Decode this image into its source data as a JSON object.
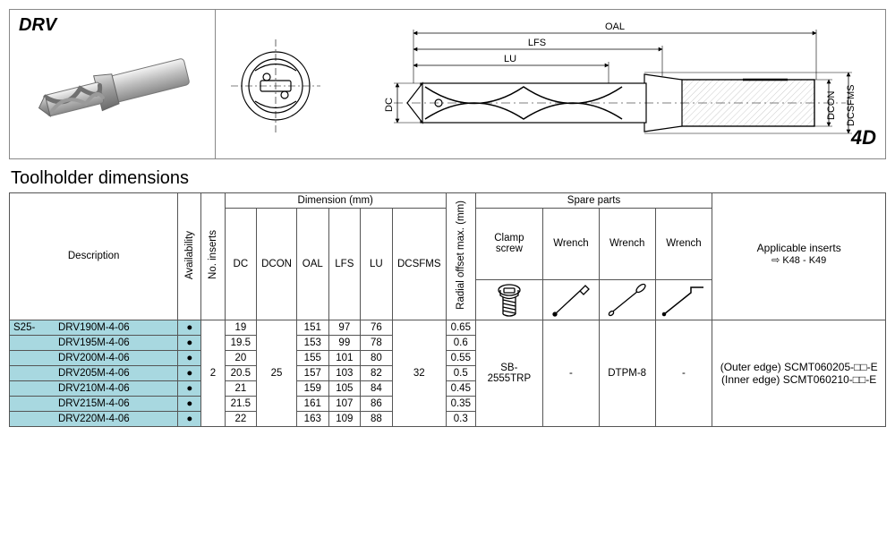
{
  "product": {
    "code": "DRV",
    "ratio": "4D"
  },
  "diagram_labels": {
    "oal": "OAL",
    "lfs": "LFS",
    "lu": "LU",
    "dc": "DC",
    "dcon": "DCON",
    "dcsfms": "DCSFMS"
  },
  "section_title": "Toolholder dimensions",
  "headers": {
    "description": "Description",
    "availability": "Availability",
    "no_inserts": "No. inserts",
    "dimension_group": "Dimension (mm)",
    "dc": "DC",
    "dcon": "DCON",
    "oal": "OAL",
    "lfs": "LFS",
    "lu": "LU",
    "dcsfms": "DCSFMS",
    "radial_offset": "Radial offset max. (mm)",
    "spare_parts": "Spare parts",
    "clamp_screw": "Clamp screw",
    "wrench": "Wrench",
    "applicable_inserts": "Applicable inserts",
    "inserts_ref": "⇨ K48 - K49"
  },
  "shared": {
    "prefix": "S25-",
    "no_inserts": "2",
    "dcon": "25",
    "dcsfms": "32",
    "clamp_screw": "SB-2555TRP",
    "wrench1": "-",
    "wrench2": "DTPM-8",
    "wrench3": "-",
    "insert_outer": "(Outer edge) SCMT060205-□□-E",
    "insert_inner": "(Inner edge) SCMT060210-□□-E"
  },
  "rows": [
    {
      "pn": "DRV190M-4-06",
      "dc": "19",
      "oal": "151",
      "lfs": "97",
      "lu": "76",
      "ro": "0.65"
    },
    {
      "pn": "DRV195M-4-06",
      "dc": "19.5",
      "oal": "153",
      "lfs": "99",
      "lu": "78",
      "ro": "0.6"
    },
    {
      "pn": "DRV200M-4-06",
      "dc": "20",
      "oal": "155",
      "lfs": "101",
      "lu": "80",
      "ro": "0.55"
    },
    {
      "pn": "DRV205M-4-06",
      "dc": "20.5",
      "oal": "157",
      "lfs": "103",
      "lu": "82",
      "ro": "0.5"
    },
    {
      "pn": "DRV210M-4-06",
      "dc": "21",
      "oal": "159",
      "lfs": "105",
      "lu": "84",
      "ro": "0.45"
    },
    {
      "pn": "DRV215M-4-06",
      "dc": "21.5",
      "oal": "161",
      "lfs": "107",
      "lu": "86",
      "ro": "0.35"
    },
    {
      "pn": "DRV220M-4-06",
      "dc": "22",
      "oal": "163",
      "lfs": "109",
      "lu": "88",
      "ro": "0.3"
    }
  ],
  "colors": {
    "highlight": "#a8d8e0",
    "border": "#555555",
    "metal_light": "#e8e8e8",
    "metal_mid": "#b8b8b8",
    "metal_dark": "#888888"
  }
}
